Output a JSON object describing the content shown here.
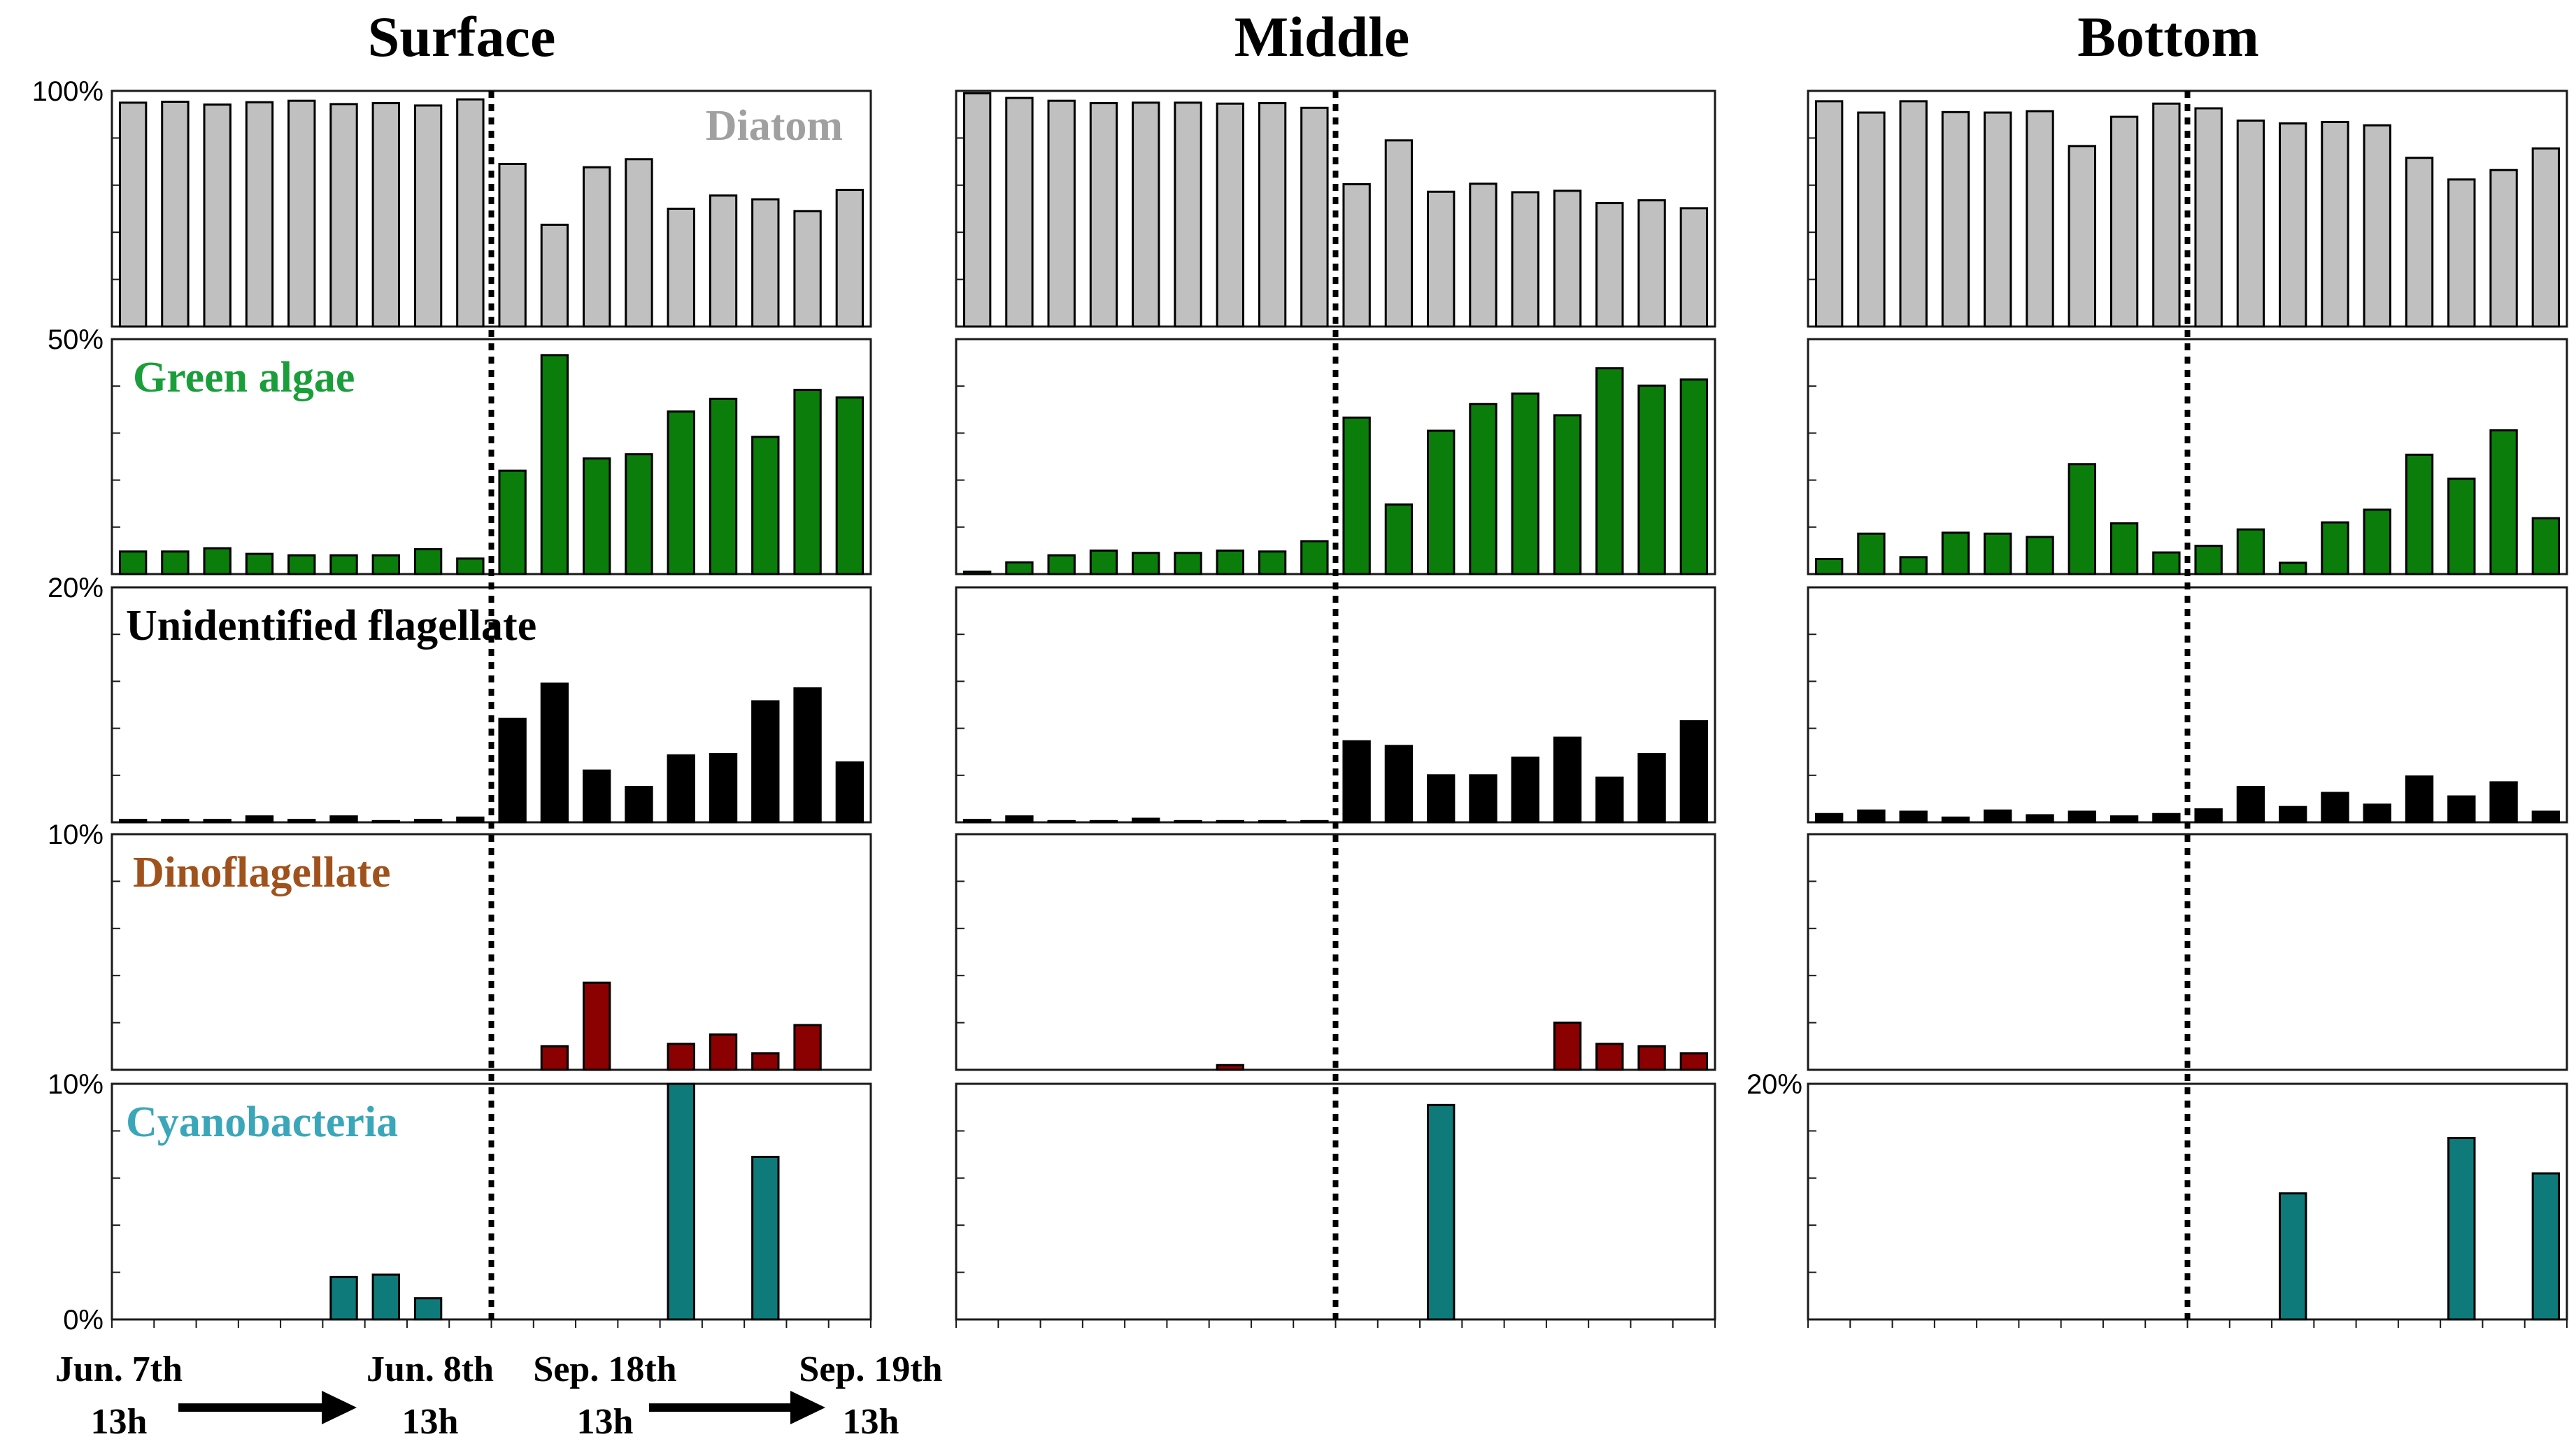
{
  "chart_data": {
    "type": "bar",
    "columns": [
      "Surface",
      "Middle",
      "Bottom"
    ],
    "x": [
      "Jun. 7th 13h",
      "",
      "",
      "",
      "",
      "",
      "",
      "",
      "Jun. 8th 13h",
      "Sep. 18th 13h",
      "",
      "",
      "",
      "",
      "",
      "",
      "",
      "Sep. 19th 13h"
    ],
    "x_labels": [
      {
        "date": "Jun. 7th",
        "hour": "13h"
      },
      {
        "date": "Jun. 8th",
        "hour": "13h"
      },
      {
        "date": "Sep. 18th",
        "hour": "13h"
      },
      {
        "date": "Sep. 19th",
        "hour": "13h"
      }
    ],
    "divider_after_index": 8,
    "groups": [
      {
        "name": "Diatom",
        "color": "#a0a0a0",
        "fill": "#c0c0c0",
        "ylim": [
          50,
          100
        ],
        "ytick_labels": [
          "100%",
          "50%"
        ]
      },
      {
        "name": "Green algae",
        "color": "#1a9e3a",
        "fill": "#0a7d0a",
        "ylim": [
          0,
          50
        ],
        "ytick_labels": [
          "50%"
        ]
      },
      {
        "name": "Unidentified flagellate",
        "color": "#000000",
        "fill": "#000000",
        "ylim": [
          0,
          20
        ],
        "ytick_labels": [
          "20%"
        ]
      },
      {
        "name": "Dinoflagellate",
        "color": "#a0521d",
        "fill": "#8b0000",
        "ylim": [
          0,
          10
        ],
        "ytick_labels": [
          "10%"
        ]
      },
      {
        "name": "Cyanobacteria",
        "color": "#3aa6b9",
        "fill": "#0e7a7a",
        "ylim": [
          0,
          10
        ],
        "ytick_labels": [
          "10%",
          "0%"
        ],
        "bottom_column_ytick": "20%",
        "bottom_column_ylim": [
          0,
          20
        ]
      }
    ],
    "series": [
      {
        "column": "Surface",
        "group": "Diatom",
        "values": [
          97.5,
          97.7,
          97.1,
          97.6,
          97.9,
          97.2,
          97.4,
          96.9,
          98.2,
          84.5,
          71.6,
          83.8,
          85.5,
          75,
          77.8,
          77,
          74.5,
          79
        ]
      },
      {
        "column": "Surface",
        "group": "Green algae",
        "values": [
          4.8,
          4.8,
          5.5,
          4.3,
          4,
          4,
          4,
          5.3,
          3.3,
          22,
          46.6,
          24.6,
          25.5,
          34.6,
          37.3,
          29.2,
          39.2,
          37.6
        ]
      },
      {
        "column": "Surface",
        "group": "Unidentified flagellate",
        "values": [
          0.2,
          0.2,
          0.2,
          0.5,
          0.2,
          0.5,
          0.1,
          0.2,
          0.4,
          8.8,
          11.8,
          4.4,
          3,
          5.7,
          5.8,
          10.3,
          11.4,
          5.1
        ]
      },
      {
        "column": "Surface",
        "group": "Dinoflagellate",
        "values": [
          0,
          0,
          0,
          0,
          0,
          0,
          0,
          0,
          0,
          0,
          1,
          3.7,
          0,
          1.1,
          1.5,
          0.7,
          1.9,
          0
        ]
      },
      {
        "column": "Surface",
        "group": "Cyanobacteria",
        "values": [
          0,
          0,
          0,
          0,
          0,
          1.8,
          1.9,
          0.9,
          0,
          0,
          0,
          0,
          0,
          10,
          0,
          6.9,
          0,
          0
        ]
      },
      {
        "column": "Middle",
        "group": "Diatom",
        "values": [
          99.5,
          98.5,
          97.9,
          97.4,
          97.5,
          97.5,
          97.3,
          97.4,
          96.4,
          80.2,
          89.5,
          78.6,
          80.3,
          78.5,
          78.8,
          76.2,
          76.8,
          75.1
        ]
      },
      {
        "column": "Middle",
        "group": "Green algae",
        "values": [
          0.5,
          2.5,
          4,
          5,
          4.5,
          4.5,
          5,
          4.8,
          7,
          33.3,
          14.8,
          30.5,
          36.2,
          38.4,
          33.8,
          43.8,
          40.1,
          41.4
        ]
      },
      {
        "column": "Middle",
        "group": "Unidentified flagellate",
        "values": [
          0.2,
          0.5,
          0.1,
          0.1,
          0.3,
          0.1,
          0.1,
          0.1,
          0.1,
          6.9,
          6.5,
          4,
          4,
          5.5,
          7.2,
          3.8,
          5.8,
          8.6
        ]
      },
      {
        "column": "Middle",
        "group": "Dinoflagellate",
        "values": [
          0,
          0,
          0,
          0,
          0,
          0,
          0.2,
          0,
          0,
          0,
          0,
          0,
          0,
          0,
          2,
          1.1,
          1,
          0.7
        ]
      },
      {
        "column": "Middle",
        "group": "Cyanobacteria",
        "values": [
          0,
          0,
          0,
          0,
          0,
          0,
          0,
          0,
          0,
          0,
          0,
          9.1,
          0,
          0,
          0,
          0,
          0,
          0
        ]
      },
      {
        "column": "Bottom",
        "group": "Diatom",
        "values": [
          97.8,
          95.4,
          97.8,
          95.5,
          95.4,
          95.7,
          88.3,
          94.5,
          97.3,
          96.3,
          93.7,
          93.1,
          93.4,
          92.7,
          85.8,
          81.2,
          83.2,
          87.8
        ]
      },
      {
        "column": "Bottom",
        "group": "Green algae",
        "values": [
          3.2,
          8.6,
          3.6,
          8.8,
          8.6,
          7.9,
          23.4,
          10.8,
          4.6,
          6,
          9.5,
          2.4,
          11,
          13.7,
          25.4,
          20.3,
          30.6,
          11.9
        ]
      },
      {
        "column": "Bottom",
        "group": "Unidentified flagellate",
        "values": [
          0.7,
          1,
          0.9,
          0.4,
          1,
          0.6,
          0.9,
          0.5,
          0.7,
          1.1,
          3,
          1.3,
          2.5,
          1.5,
          3.9,
          2.2,
          3.4,
          0.9
        ]
      },
      {
        "column": "Bottom",
        "group": "Dinoflagellate",
        "values": [
          0,
          0,
          0,
          0,
          0,
          0,
          0,
          0,
          0,
          0,
          0,
          0,
          0,
          0,
          0,
          0,
          0,
          0
        ]
      },
      {
        "column": "Bottom",
        "group": "Cyanobacteria",
        "values": [
          0,
          0,
          0,
          0,
          0,
          0,
          0,
          0,
          0,
          0,
          0,
          10.7,
          0,
          0,
          0,
          15.4,
          0,
          12.4
        ]
      }
    ],
    "grid": false,
    "legend": "in-panel labels"
  }
}
